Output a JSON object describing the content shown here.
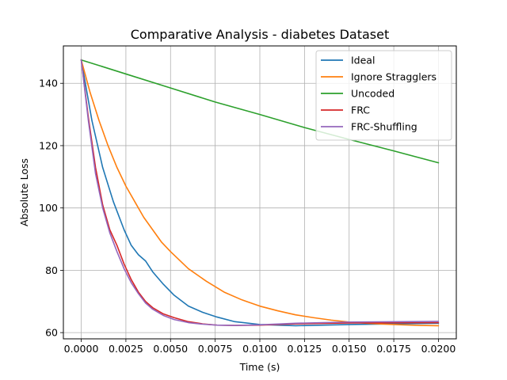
{
  "chart_data": {
    "type": "line",
    "title": "Comparative Analysis - diabetes Dataset",
    "xlabel": "Time (s)",
    "ylabel": "Absolute Loss",
    "xlim": [
      -0.001,
      0.021
    ],
    "ylim": [
      58,
      152
    ],
    "grid": true,
    "legend_position": "top-right",
    "x_ticks": [
      0.0,
      0.0025,
      0.005,
      0.0075,
      0.01,
      0.0125,
      0.015,
      0.0175,
      0.02
    ],
    "x_tick_labels": [
      "0.0000",
      "0.0025",
      "0.0050",
      "0.0075",
      "0.0100",
      "0.0125",
      "0.0150",
      "0.0175",
      "0.0200"
    ],
    "y_ticks": [
      60,
      80,
      100,
      120,
      140
    ],
    "y_tick_labels": [
      "60",
      "80",
      "100",
      "120",
      "140"
    ],
    "series": [
      {
        "name": "Ideal",
        "color": "#1f77b4",
        "x": [
          0.0,
          0.0006,
          0.0012,
          0.0018,
          0.0024,
          0.0028,
          0.0032,
          0.0036,
          0.004,
          0.0046,
          0.0052,
          0.006,
          0.0068,
          0.0076,
          0.0086,
          0.01,
          0.012,
          0.015,
          0.02
        ],
        "y": [
          147.5,
          128,
          113,
          102,
          93,
          88,
          85,
          83,
          79.5,
          75.5,
          72,
          68.5,
          66.5,
          65,
          63.5,
          62.6,
          62.2,
          62.6,
          63.0
        ]
      },
      {
        "name": "Ignore Stragglers",
        "color": "#ff7f0e",
        "x": [
          0.0,
          0.0005,
          0.001,
          0.0015,
          0.002,
          0.0025,
          0.003,
          0.0035,
          0.004,
          0.0045,
          0.005,
          0.006,
          0.007,
          0.008,
          0.009,
          0.01,
          0.011,
          0.012,
          0.013,
          0.014,
          0.015,
          0.016,
          0.017,
          0.018,
          0.019,
          0.02
        ],
        "y": [
          147.5,
          137,
          128,
          120,
          113,
          107,
          102,
          97,
          93,
          89,
          86,
          80.5,
          76.5,
          73,
          70.5,
          68.5,
          67,
          65.7,
          64.8,
          64.0,
          63.4,
          63.0,
          62.7,
          62.5,
          62.3,
          62.2
        ]
      },
      {
        "name": "Uncoded",
        "color": "#2ca02c",
        "x": [
          0.0,
          0.0025,
          0.005,
          0.0075,
          0.01,
          0.0125,
          0.015,
          0.0175,
          0.02
        ],
        "y": [
          147.5,
          143,
          138.5,
          134,
          130,
          125.8,
          122,
          118.3,
          114.5
        ]
      },
      {
        "name": "FRC",
        "color": "#d62728",
        "x": [
          0.0,
          0.0004,
          0.0008,
          0.0012,
          0.0016,
          0.002,
          0.0024,
          0.0028,
          0.0032,
          0.0036,
          0.004,
          0.0046,
          0.0052,
          0.006,
          0.0068,
          0.0076,
          0.0086,
          0.01,
          0.012,
          0.015,
          0.02
        ],
        "y": [
          147.5,
          129,
          113,
          101,
          93,
          88,
          82,
          77,
          73,
          70,
          68,
          66,
          64.8,
          63.5,
          62.8,
          62.4,
          62.3,
          62.4,
          62.8,
          63.1,
          63.2
        ]
      },
      {
        "name": "FRC-Shuffling",
        "color": "#9467bd",
        "x": [
          0.0,
          0.0004,
          0.0008,
          0.0012,
          0.0016,
          0.002,
          0.0024,
          0.0028,
          0.0032,
          0.0036,
          0.004,
          0.0046,
          0.0052,
          0.006,
          0.0068,
          0.0076,
          0.0086,
          0.01,
          0.012,
          0.015,
          0.02
        ],
        "y": [
          147.5,
          128,
          111,
          100,
          92,
          86,
          80.5,
          76,
          72.5,
          69.5,
          67.5,
          65.5,
          64.2,
          63.2,
          62.7,
          62.4,
          62.3,
          62.5,
          63.0,
          63.4,
          63.6
        ]
      }
    ]
  }
}
